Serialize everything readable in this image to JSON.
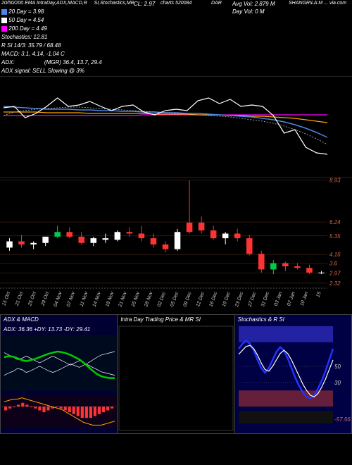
{
  "header": {
    "line1_prefix": "20/50/200",
    "line1_mid": "EMA IntraDay,ADX,MACD,R",
    "line1_right": "SI,Stochastics,MR",
    "chartcode_label": "charts 520084",
    "dar_label": "DAR",
    "source": "SHANGRILA:M  ... via.com",
    "ma20": {
      "label": "20",
      "suffix": "Day",
      "value": "3.98",
      "color": "#4a86e8"
    },
    "ma50": {
      "label": "50",
      "suffix": "Day",
      "value": "4.54",
      "color": "#ffffff"
    },
    "ma200": {
      "label": "200",
      "suffix": "Day",
      "value": "4.49",
      "color": "#ff00ff"
    },
    "stochastics": {
      "label": "Stochastics:",
      "value": "12.81"
    },
    "rsi": {
      "label": "R     SI 14/3:",
      "value": "35.79 / 68.48"
    },
    "macd": {
      "label": "MACD:",
      "value": "3.1, 4.14, -1.04   C"
    },
    "adx": {
      "label": "ADX:",
      "value": "(MGR) 36.4, 13.7, 29.4"
    },
    "adx_signal": {
      "label": "ADX  signal:",
      "value": "SELL Slowing @ 3%"
    },
    "cl": "CL: 2.97",
    "avgvol": "Avg Vol: 2.879  M",
    "dayvol": "Day Vol: 0   M"
  },
  "top_chart": {
    "bg": "#000000",
    "height": 143,
    "lines": {
      "white": {
        "color": "#ffffff",
        "width": 1.2,
        "y": [
          44,
          42,
          58,
          52,
          42,
          30,
          42,
          40,
          35,
          42,
          48,
          42,
          40,
          50,
          54,
          48,
          46,
          48,
          34,
          30,
          38,
          32,
          42,
          40,
          42,
          55,
          80,
          75,
          100,
          108,
          110
        ]
      },
      "blue": {
        "color": "#4a86e8",
        "width": 1.5,
        "y": [
          42,
          43,
          44,
          45,
          46,
          46,
          46,
          47,
          47,
          48,
          48,
          49,
          49,
          50,
          50,
          51,
          51,
          52,
          52,
          53,
          54,
          55,
          56,
          57,
          59,
          61,
          64,
          68,
          73,
          79,
          86
        ]
      },
      "orange": {
        "color": "#ffa500",
        "width": 1.2,
        "y": [
          50,
          50,
          50,
          50,
          51,
          51,
          51,
          51,
          52,
          52,
          52,
          52,
          52,
          52,
          53,
          53,
          53,
          53,
          54,
          54,
          54,
          55,
          55,
          56,
          56,
          57,
          58,
          59,
          61,
          63,
          65
        ]
      },
      "magenta": {
        "color": "#ff00ff",
        "width": 1.2,
        "y": [
          55,
          55,
          55,
          55,
          55,
          55,
          55,
          55,
          55,
          55,
          55,
          55,
          55,
          54,
          54,
          54,
          54,
          54,
          54,
          54,
          54,
          54,
          54,
          54,
          54,
          54,
          54,
          54,
          54,
          54,
          54
        ]
      },
      "dotted": {
        "color": "#bbbbbb",
        "width": 0.8,
        "dash": "2,2",
        "y": [
          55,
          50,
          48,
          46,
          45,
          44,
          43,
          43,
          44,
          45,
          46,
          47,
          48,
          49,
          50,
          51,
          52,
          53,
          54,
          55,
          56,
          57,
          59,
          61,
          63,
          66,
          70,
          75,
          81,
          88,
          96
        ]
      }
    }
  },
  "candle_chart": {
    "height": 160,
    "bg": "#000000",
    "ylabels": [
      "8.93",
      "6.24",
      "5.35",
      "4.16",
      "3.6",
      "2.97",
      "2.32"
    ],
    "ylabel_color": "#cc6644",
    "grid_color": "#553322",
    "xlabels": [
      "15 Oct",
      "21 Oct",
      "25 Oct",
      "29 Oct",
      "04 Nov",
      "07 Nov",
      "11 Nov",
      "14 Nov",
      "18 Nov",
      "21 Nov",
      "25 Nov",
      "28 Nov",
      "02 Dec",
      "05 Dec",
      "09 Dec",
      "12 Dec",
      "16 Dec",
      "19 Dec",
      "23 Dec",
      "27 Dec",
      "31 Dec",
      "03 Jan",
      "07 Jan",
      "10 Jan",
      "15"
    ],
    "candles": [
      {
        "o": 4.6,
        "h": 5.2,
        "l": 4.4,
        "c": 5.0,
        "col": "#ffffff"
      },
      {
        "o": 5.0,
        "h": 5.4,
        "l": 4.6,
        "c": 4.8,
        "col": "#ff3333"
      },
      {
        "o": 4.8,
        "h": 5.0,
        "l": 4.5,
        "c": 4.9,
        "col": "#ffffff"
      },
      {
        "o": 4.9,
        "h": 5.3,
        "l": 4.7,
        "c": 5.3,
        "col": "#ffffff"
      },
      {
        "o": 5.3,
        "h": 6.0,
        "l": 5.2,
        "c": 5.6,
        "col": "#00cc44"
      },
      {
        "o": 5.6,
        "h": 5.9,
        "l": 5.2,
        "c": 5.3,
        "col": "#ff3333"
      },
      {
        "o": 5.3,
        "h": 5.6,
        "l": 4.8,
        "c": 4.9,
        "col": "#ff3333"
      },
      {
        "o": 4.9,
        "h": 5.3,
        "l": 4.7,
        "c": 5.2,
        "col": "#ffffff"
      },
      {
        "o": 5.2,
        "h": 5.5,
        "l": 4.9,
        "c": 5.1,
        "col": "#ffffff"
      },
      {
        "o": 5.1,
        "h": 5.7,
        "l": 5.0,
        "c": 5.6,
        "col": "#ffffff"
      },
      {
        "o": 5.6,
        "h": 5.9,
        "l": 5.3,
        "c": 5.5,
        "col": "#ff3333"
      },
      {
        "o": 5.5,
        "h": 6.0,
        "l": 5.0,
        "c": 5.2,
        "col": "#ff3333"
      },
      {
        "o": 5.2,
        "h": 5.5,
        "l": 4.6,
        "c": 4.8,
        "col": "#ff3333"
      },
      {
        "o": 4.8,
        "h": 5.0,
        "l": 4.3,
        "c": 4.5,
        "col": "#ff3333"
      },
      {
        "o": 4.5,
        "h": 5.8,
        "l": 4.4,
        "c": 5.6,
        "col": "#ffffff"
      },
      {
        "o": 5.6,
        "h": 8.9,
        "l": 5.5,
        "c": 6.2,
        "col": "#ff3333"
      },
      {
        "o": 6.2,
        "h": 6.6,
        "l": 5.5,
        "c": 5.7,
        "col": "#ff3333"
      },
      {
        "o": 5.7,
        "h": 6.0,
        "l": 5.1,
        "c": 5.2,
        "col": "#ff3333"
      },
      {
        "o": 5.2,
        "h": 5.6,
        "l": 4.8,
        "c": 5.5,
        "col": "#ffffff"
      },
      {
        "o": 5.5,
        "h": 5.8,
        "l": 5.0,
        "c": 5.2,
        "col": "#ff3333"
      },
      {
        "o": 5.2,
        "h": 5.4,
        "l": 4.1,
        "c": 4.2,
        "col": "#ff3333"
      },
      {
        "o": 4.2,
        "h": 4.4,
        "l": 3.0,
        "c": 3.2,
        "col": "#ff3333"
      },
      {
        "o": 3.2,
        "h": 3.8,
        "l": 2.9,
        "c": 3.6,
        "col": "#00cc44"
      },
      {
        "o": 3.6,
        "h": 3.7,
        "l": 3.1,
        "c": 3.4,
        "col": "#ff3333"
      },
      {
        "o": 3.4,
        "h": 3.6,
        "l": 3.2,
        "c": 3.3,
        "col": "#ff3333"
      },
      {
        "o": 3.3,
        "h": 3.5,
        "l": 2.9,
        "c": 3.0,
        "col": "#ff3333"
      },
      {
        "o": 3.0,
        "h": 3.1,
        "l": 2.9,
        "c": 3.0,
        "col": "#ffffff"
      }
    ],
    "ymin": 2.0,
    "ymax": 9.0
  },
  "bottom": {
    "adx_macd": {
      "title": "ADX  & MACD",
      "readout": "ADX: 36.36   +DY: 13.73 -DY: 29.41",
      "bg": "#000033",
      "adx_line": {
        "color": "#00cc00",
        "width": 2.5,
        "y": [
          60,
          62,
          61,
          58,
          55,
          53,
          55,
          57,
          60,
          63,
          66,
          68,
          70,
          69,
          67,
          64,
          60,
          56,
          50,
          43,
          36,
          30,
          26,
          24,
          23,
          23
        ]
      },
      "plus_dy": {
        "color": "#ffffff",
        "width": 0.7,
        "y": [
          28,
          32,
          35,
          40,
          38,
          33,
          36,
          40,
          44,
          40,
          36,
          33,
          36,
          40,
          44,
          48,
          45,
          42,
          46,
          50,
          55,
          60,
          64,
          66,
          68,
          70
        ]
      },
      "minus_dy": {
        "color": "#ffffff",
        "width": 0.7,
        "y": [
          68,
          64,
          60,
          56,
          58,
          62,
          58,
          54,
          50,
          54,
          58,
          62,
          58,
          54,
          50,
          46,
          50,
          54,
          50,
          46,
          42,
          38,
          34,
          32,
          30,
          28
        ]
      },
      "macd_hist": {
        "color": "#ff3333",
        "vals": [
          -2,
          -1,
          0,
          1,
          2,
          1,
          0,
          -1,
          -2,
          -3,
          -2,
          -1,
          0,
          -1,
          -2,
          -3,
          -4,
          -5,
          -6,
          -6,
          -6,
          -5,
          -4,
          -3,
          -2,
          -1
        ]
      },
      "macd_line": {
        "color": "#ffa500",
        "y": [
          80,
          79,
          78,
          78,
          77,
          78,
          79,
          80,
          81,
          82,
          83,
          84,
          85,
          86,
          88,
          90,
          92,
          94,
          96,
          97,
          98,
          98,
          98,
          97,
          96,
          95
        ]
      }
    },
    "intraday": {
      "title": "Intra  Day Trading Price   & MR       SI",
      "bg": "#000000"
    },
    "stoch": {
      "title": "Stochastics & R      SI",
      "bg": "#000044",
      "ylabels": [
        "50",
        "30",
        "-57.56"
      ],
      "fill80_color": "#4444ff",
      "fill20_color": "#aa3333",
      "k_line": {
        "color": "#2233ff",
        "width": 2.5,
        "y": [
          72,
          78,
          82,
          78,
          70,
          58,
          48,
          42,
          48,
          58,
          68,
          74,
          70,
          60,
          48,
          36,
          26,
          18,
          12,
          10,
          14,
          22,
          32,
          44,
          58,
          72
        ]
      },
      "d_line": {
        "color": "#ffffff",
        "width": 1.2,
        "y": [
          65,
          70,
          75,
          76,
          72,
          64,
          54,
          46,
          44,
          50,
          58,
          66,
          70,
          66,
          58,
          48,
          38,
          28,
          20,
          14,
          12,
          16,
          24,
          34,
          46,
          58
        ]
      }
    }
  }
}
